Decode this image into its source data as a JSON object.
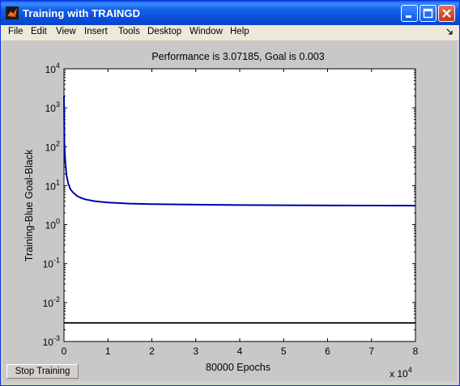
{
  "window": {
    "title": "Training with TRAINGD",
    "controls": [
      "minimize",
      "maximize",
      "close"
    ]
  },
  "menu": {
    "items": [
      "File",
      "Edit",
      "View",
      "Insert",
      "Tools",
      "Desktop",
      "Window",
      "Help"
    ]
  },
  "chart_data": {
    "type": "line",
    "title": "Performance is 3.07185, Goal is 0.003",
    "xlabel": "80000 Epochs",
    "ylabel": "Training-Blue  Goal-Black",
    "x_multiplier_label": {
      "base": "x 10",
      "exp": "4"
    },
    "xlim": [
      0,
      80000
    ],
    "ylim": [
      0.001,
      10000
    ],
    "yscale": "log",
    "grid": false,
    "x_ticks": [
      {
        "value": 0,
        "label": "0"
      },
      {
        "value": 10000,
        "label": "1"
      },
      {
        "value": 20000,
        "label": "2"
      },
      {
        "value": 30000,
        "label": "3"
      },
      {
        "value": 40000,
        "label": "4"
      },
      {
        "value": 50000,
        "label": "5"
      },
      {
        "value": 60000,
        "label": "6"
      },
      {
        "value": 70000,
        "label": "7"
      },
      {
        "value": 80000,
        "label": "8"
      }
    ],
    "y_ticks": [
      {
        "value": 0.001,
        "base": "10",
        "exp": "-3"
      },
      {
        "value": 0.01,
        "base": "10",
        "exp": "-2"
      },
      {
        "value": 0.1,
        "base": "10",
        "exp": "-1"
      },
      {
        "value": 1,
        "base": "10",
        "exp": "0"
      },
      {
        "value": 10,
        "base": "10",
        "exp": "1"
      },
      {
        "value": 100,
        "base": "10",
        "exp": "2"
      },
      {
        "value": 1000,
        "base": "10",
        "exp": "3"
      },
      {
        "value": 10000,
        "base": "10",
        "exp": "4"
      }
    ],
    "series": [
      {
        "color": "#0000aa",
        "x": [
          0,
          100,
          300,
          600,
          1000,
          1500,
          2000,
          3000,
          4000,
          5000,
          7000,
          10000,
          15000,
          20000,
          30000,
          40000,
          50000,
          60000,
          70000,
          80000
        ],
        "y": [
          2000,
          120,
          40,
          18,
          11,
          8,
          6.8,
          5.4,
          4.8,
          4.4,
          4.0,
          3.7,
          3.45,
          3.35,
          3.25,
          3.18,
          3.14,
          3.11,
          3.09,
          3.07185
        ]
      },
      {
        "color": "#000000",
        "x": [
          0,
          80000
        ],
        "y": [
          0.003,
          0.003
        ]
      }
    ]
  },
  "controls": {
    "stop_label": "Stop Training"
  }
}
